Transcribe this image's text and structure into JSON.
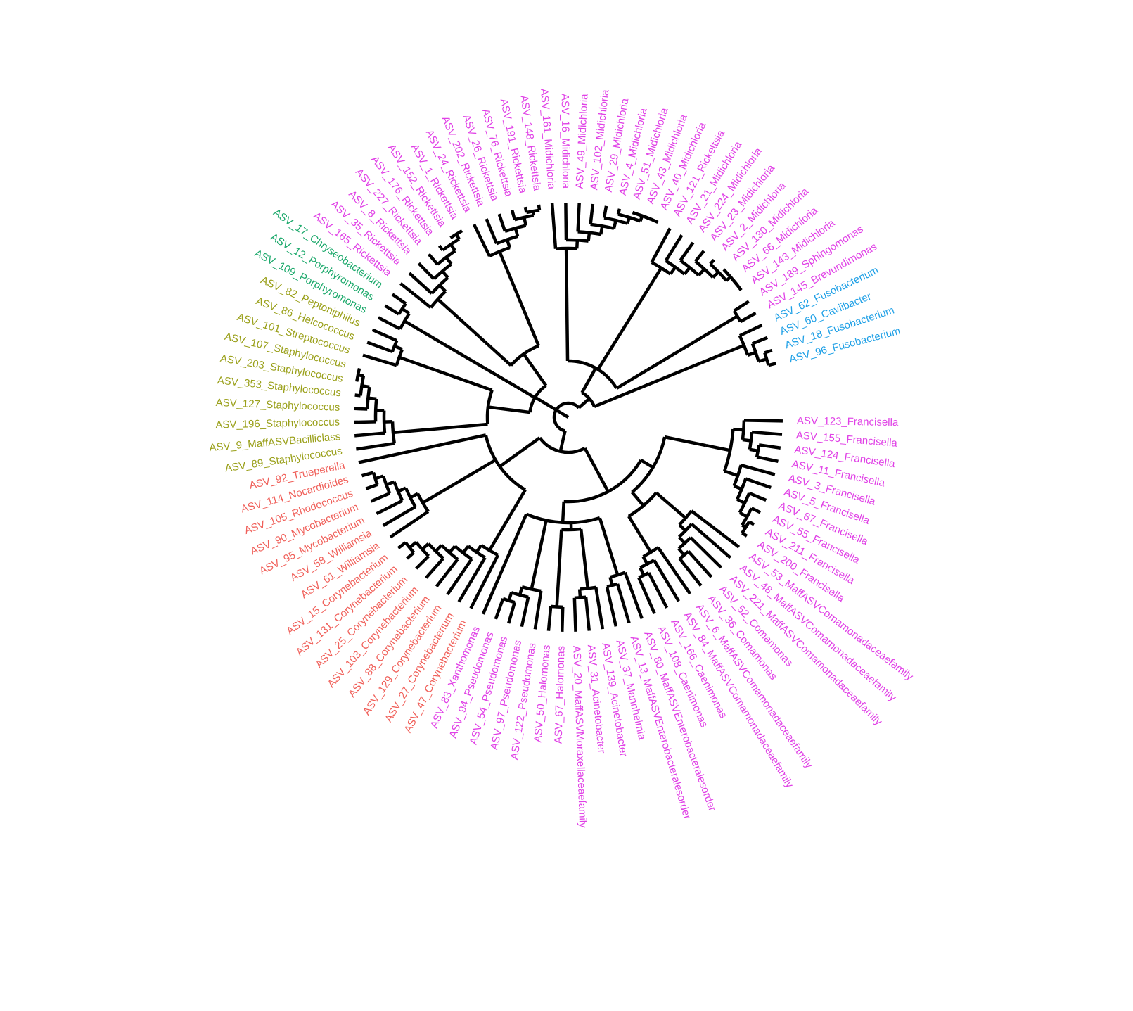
{
  "group_colors": {
    "magenta": "#e040e6",
    "green": "#1aa86a",
    "olive": "#9aa01a",
    "salmon": "#f0605a",
    "blue": "#1fa0e6"
  },
  "tips": [
    {
      "label": "ASV_123_Francisella",
      "group": "magenta"
    },
    {
      "label": "ASV_155_Francisella",
      "group": "magenta"
    },
    {
      "label": "ASV_124_Francisella",
      "group": "magenta"
    },
    {
      "label": "ASV_11_Francisella",
      "group": "magenta"
    },
    {
      "label": "ASV_3_Francisella",
      "group": "magenta"
    },
    {
      "label": "ASV_5_Francisella",
      "group": "magenta"
    },
    {
      "label": "ASV_87_Francisella",
      "group": "magenta"
    },
    {
      "label": "ASV_55_Francisella",
      "group": "magenta"
    },
    {
      "label": "ASV_211_Francisella",
      "group": "magenta"
    },
    {
      "label": "ASV_200_Francisella",
      "group": "magenta"
    },
    {
      "label": "ASV_53_MaffASVComamonadaceaefamily",
      "group": "magenta"
    },
    {
      "label": "ASV_48_MaffASVComamonadaceaefamily",
      "group": "magenta"
    },
    {
      "label": "ASV_221_MaffASVComamonadaceaefamily",
      "group": "magenta"
    },
    {
      "label": "ASV_52_Comamonas",
      "group": "magenta"
    },
    {
      "label": "ASV_36_Comamonas",
      "group": "magenta"
    },
    {
      "label": "ASV_6_MaffASVComamonadaceaefamily",
      "group": "magenta"
    },
    {
      "label": "ASV_84_MaffASVComamonadaceaefamily",
      "group": "magenta"
    },
    {
      "label": "ASV_166_Caenimonas",
      "group": "magenta"
    },
    {
      "label": "ASV_108_Caenimonas",
      "group": "magenta"
    },
    {
      "label": "ASV_80_MaffASVEnterobacteralesorder",
      "group": "magenta"
    },
    {
      "label": "ASV_13_MaffASVEnterobacteralesorder",
      "group": "magenta"
    },
    {
      "label": "ASV_37_Mannheimia",
      "group": "magenta"
    },
    {
      "label": "ASV_139_Acinetobacter",
      "group": "magenta"
    },
    {
      "label": "ASV_31_Acinetobacter",
      "group": "magenta"
    },
    {
      "label": "ASV_20_MaffASVMoraxellaceaefamily",
      "group": "magenta"
    },
    {
      "label": "ASV_67_Halomonas",
      "group": "magenta"
    },
    {
      "label": "ASV_50_Halomonas",
      "group": "magenta"
    },
    {
      "label": "ASV_122_Pseudomonas",
      "group": "magenta"
    },
    {
      "label": "ASV_97_Pseudomonas",
      "group": "magenta"
    },
    {
      "label": "ASV_54_Pseudomonas",
      "group": "magenta"
    },
    {
      "label": "ASV_94_Pseudomonas",
      "group": "magenta"
    },
    {
      "label": "ASV_83_Xanthomonas",
      "group": "magenta"
    },
    {
      "label": "ASV_47_Corynebacterium",
      "group": "salmon"
    },
    {
      "label": "ASV_27_Corynebacterium",
      "group": "salmon"
    },
    {
      "label": "ASV_129_Corynebacterium",
      "group": "salmon"
    },
    {
      "label": "ASV_88_Corynebacterium",
      "group": "salmon"
    },
    {
      "label": "ASV_103_Corynebacterium",
      "group": "salmon"
    },
    {
      "label": "ASV_25_Corynebacterium",
      "group": "salmon"
    },
    {
      "label": "ASV_131_Corynebacterium",
      "group": "salmon"
    },
    {
      "label": "ASV_15_Corynebacterium",
      "group": "salmon"
    },
    {
      "label": "ASV_61_Williamsia",
      "group": "salmon"
    },
    {
      "label": "ASV_58_Williamsia",
      "group": "salmon"
    },
    {
      "label": "ASV_95_Mycobacterium",
      "group": "salmon"
    },
    {
      "label": "ASV_90_Mycobacterium",
      "group": "salmon"
    },
    {
      "label": "ASV_105_Rhodococcus",
      "group": "salmon"
    },
    {
      "label": "ASV_114_Nocardioides",
      "group": "salmon"
    },
    {
      "label": "ASV_92_Trueperella",
      "group": "salmon"
    },
    {
      "label": "ASV_89_Staphylococcus",
      "group": "olive"
    },
    {
      "label": "ASV_9_MaffASVBacilliclass",
      "group": "olive"
    },
    {
      "label": "ASV_196_Staphylococcus",
      "group": "olive"
    },
    {
      "label": "ASV_127_Staphylococcus",
      "group": "olive"
    },
    {
      "label": "ASV_353_Staphylococcus",
      "group": "olive"
    },
    {
      "label": "ASV_203_Staphylococcus",
      "group": "olive"
    },
    {
      "label": "ASV_107_Staphylococcus",
      "group": "olive"
    },
    {
      "label": "ASV_101_Streptococcus",
      "group": "olive"
    },
    {
      "label": "ASV_86_Helcococcus",
      "group": "olive"
    },
    {
      "label": "ASV_82_Peptoniphilus",
      "group": "olive"
    },
    {
      "label": "ASV_109_Porphyromonas",
      "group": "green"
    },
    {
      "label": "ASV_12_Porphyromonas",
      "group": "green"
    },
    {
      "label": "ASV_17_Chryseobacterium",
      "group": "green"
    },
    {
      "label": "ASV_165_Rickettsia",
      "group": "magenta"
    },
    {
      "label": "ASV_35_Rickettsia",
      "group": "magenta"
    },
    {
      "label": "ASV_8_Rickettsia",
      "group": "magenta"
    },
    {
      "label": "ASV_227_Rickettsia",
      "group": "magenta"
    },
    {
      "label": "ASV_176_Rickettsia",
      "group": "magenta"
    },
    {
      "label": "ASV_152_Rickettsia",
      "group": "magenta"
    },
    {
      "label": "ASV_1_Rickettsia",
      "group": "magenta"
    },
    {
      "label": "ASV_24_Rickettsia",
      "group": "magenta"
    },
    {
      "label": "ASV_202_Rickettsia",
      "group": "magenta"
    },
    {
      "label": "ASV_26_Rickettsia",
      "group": "magenta"
    },
    {
      "label": "ASV_76_Rickettsia",
      "group": "magenta"
    },
    {
      "label": "ASV_191_Rickettsia",
      "group": "magenta"
    },
    {
      "label": "ASV_148_Rickettsia",
      "group": "magenta"
    },
    {
      "label": "ASV_161_Midichloria",
      "group": "magenta"
    },
    {
      "label": "ASV_16_Midichloria",
      "group": "magenta"
    },
    {
      "label": "ASV_49_Midichloria",
      "group": "magenta"
    },
    {
      "label": "ASV_102_Midichloria",
      "group": "magenta"
    },
    {
      "label": "ASV_29_Midichloria",
      "group": "magenta"
    },
    {
      "label": "ASV_4_Midichloria",
      "group": "magenta"
    },
    {
      "label": "ASV_51_Midichloria",
      "group": "magenta"
    },
    {
      "label": "ASV_43_Midichloria",
      "group": "magenta"
    },
    {
      "label": "ASV_40_Midichloria",
      "group": "magenta"
    },
    {
      "label": "ASV_121_Rickettsia",
      "group": "magenta"
    },
    {
      "label": "ASV_21_Midichloria",
      "group": "magenta"
    },
    {
      "label": "ASV_224_Midichloria",
      "group": "magenta"
    },
    {
      "label": "ASV_23_Midichloria",
      "group": "magenta"
    },
    {
      "label": "ASV_2_Midichloria",
      "group": "magenta"
    },
    {
      "label": "ASV_130_Midichloria",
      "group": "magenta"
    },
    {
      "label": "ASV_66_Midichloria",
      "group": "magenta"
    },
    {
      "label": "ASV_143_Midichloria",
      "group": "magenta"
    },
    {
      "label": "ASV_189_Sphingomonas",
      "group": "magenta"
    },
    {
      "label": "ASV_145_Brevundimonas",
      "group": "magenta"
    },
    {
      "label": "ASV_62_Fusobacterium",
      "group": "blue"
    },
    {
      "label": "ASV_60_Caviibacter",
      "group": "blue"
    },
    {
      "label": "ASV_18_Fusobacterium",
      "group": "blue"
    },
    {
      "label": "ASV_96_Fusobacterium",
      "group": "blue"
    }
  ]
}
